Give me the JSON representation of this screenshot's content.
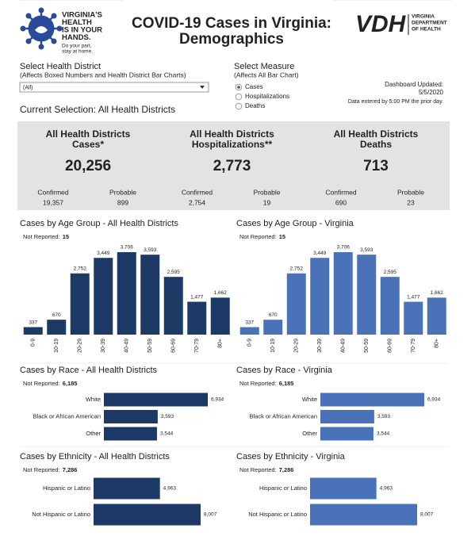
{
  "header": {
    "logo_lines": [
      "VIRGINIA'S",
      "HEALTH",
      "IS IN YOUR",
      "HANDS."
    ],
    "logo_tagline": [
      "Do your part,",
      "stay at home."
    ],
    "title_lines": [
      "COVID-19 Cases in Virginia:",
      "Demographics"
    ],
    "vdh_mark": "VDH",
    "vdh_lines": [
      "VIRGINIA",
      "DEPARTMENT",
      "OF HEALTH"
    ]
  },
  "filters": {
    "district_label": "Select Health District",
    "district_note": "(Affects Boxed Numbers and Health District Bar Charts)",
    "district_value": "(All)",
    "measure_label": "Select Measure",
    "measure_note": "(Affects All Bar Chart)",
    "measure_options": [
      "Cases",
      "Hospitalizations",
      "Deaths"
    ],
    "updated_label": "Dashboard Updated:",
    "updated_date": "5/5/2020",
    "updated_note": "Data entered by 5:00 PM the prior day.",
    "current_selection": "Current Selection: All Health Districts"
  },
  "summary": [
    {
      "title_lines": [
        "All Health Districts",
        "Cases*"
      ],
      "total": "20,256",
      "confirmed_label": "Confirmed",
      "confirmed": "19,357",
      "probable_label": "Probable",
      "probable": "899"
    },
    {
      "title_lines": [
        "All Health Districts",
        "Hospitalizations**"
      ],
      "total": "2,773",
      "confirmed_label": "Confirmed",
      "confirmed": "2,754",
      "probable_label": "Probable",
      "probable": "19"
    },
    {
      "title_lines": [
        "All Health Districts",
        "Deaths"
      ],
      "total": "713",
      "confirmed_label": "Confirmed",
      "confirmed": "690",
      "probable_label": "Probable",
      "probable": "23"
    }
  ],
  "chart_data": [
    {
      "type": "bar",
      "title": "Cases by Age Group - All Health Districts",
      "not_reported_label": "Not Reported:",
      "not_reported": "15",
      "categories": [
        "0-9",
        "10-19",
        "20-29",
        "30-39",
        "40-49",
        "50-59",
        "60-69",
        "70-79",
        "80+"
      ],
      "values": [
        337,
        670,
        2752,
        3449,
        3706,
        3593,
        2595,
        1477,
        1662
      ],
      "value_labels": [
        "337",
        "670",
        "2,752",
        "3,449",
        "3,706",
        "3,593",
        "2,595",
        "1,477",
        "1,662"
      ],
      "color": "#1d3a66"
    },
    {
      "type": "bar",
      "title": "Cases by Age Group - Virginia",
      "not_reported_label": "Not Reported:",
      "not_reported": "15",
      "categories": [
        "0-9",
        "10-19",
        "20-29",
        "30-39",
        "40-49",
        "50-59",
        "60-69",
        "70-79",
        "80+"
      ],
      "values": [
        337,
        670,
        2752,
        3449,
        3706,
        3593,
        2595,
        1477,
        1662
      ],
      "value_labels": [
        "337",
        "670",
        "2,752",
        "3,449",
        "3,706",
        "3,593",
        "2,595",
        "1,477",
        "1,662"
      ],
      "color": "#4a72b8"
    },
    {
      "type": "hbar",
      "title": "Cases by Race - All Health Districts",
      "not_reported_label": "Not Reported:",
      "not_reported": "6,185",
      "categories": [
        "White",
        "Black or African American",
        "Other"
      ],
      "values": [
        6934,
        3593,
        3544
      ],
      "value_labels": [
        "6,934",
        "3,593",
        "3,544"
      ],
      "color": "#1d3a66"
    },
    {
      "type": "hbar",
      "title": "Cases by Race - Virginia",
      "not_reported_label": "Not Reported:",
      "not_reported": "6,185",
      "categories": [
        "White",
        "Black or African American",
        "Other"
      ],
      "values": [
        6934,
        3593,
        3544
      ],
      "value_labels": [
        "6,934",
        "3,593",
        "3,544"
      ],
      "color": "#4a72b8"
    },
    {
      "type": "hbar",
      "title": "Cases by Ethnicity - All Health Districts",
      "not_reported_label": "Not Reported:",
      "not_reported": "7,286",
      "categories": [
        "Hispanic or Latino",
        "Not Hispanic or Latino"
      ],
      "values": [
        4963,
        8007
      ],
      "value_labels": [
        "4,963",
        "8,007"
      ],
      "color": "#1d3a66"
    },
    {
      "type": "hbar",
      "title": "Cases by Ethnicity - Virginia",
      "not_reported_label": "Not Reported:",
      "not_reported": "7,286",
      "categories": [
        "Hispanic or Latino",
        "Not Hispanic or Latino"
      ],
      "values": [
        4963,
        8007
      ],
      "value_labels": [
        "4,963",
        "8,007"
      ],
      "color": "#4a72b8"
    }
  ]
}
